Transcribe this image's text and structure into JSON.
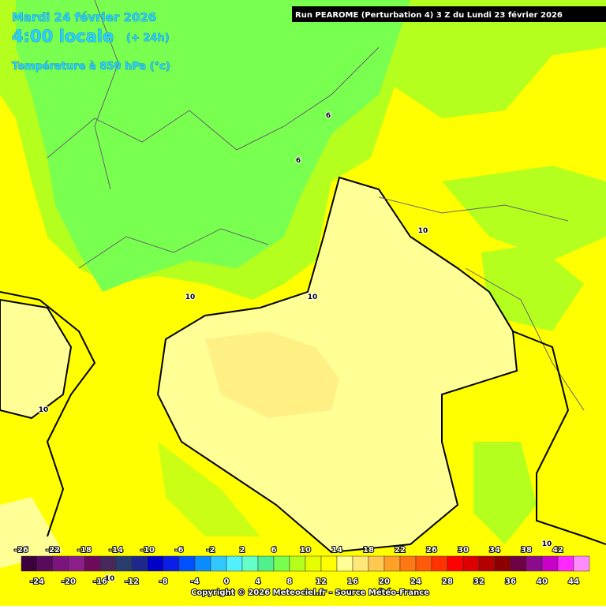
{
  "header": {
    "date": "Mardi 24 février 2026",
    "time": "4:00 locale",
    "lead": "(+ 24h)",
    "parameter": "Température à 850 hPa (°c)",
    "run": "Run PEAROME (Perturbation 4) 3 Z du Lundi 23 février 2026"
  },
  "contour_labels": [
    6,
    6,
    10,
    10,
    10,
    10,
    10,
    10
  ],
  "legend": {
    "values": [
      -26,
      -24,
      -22,
      -20,
      -18,
      -16,
      -14,
      -12,
      -10,
      -8,
      -6,
      -4,
      -2,
      0,
      2,
      4,
      6,
      8,
      10,
      12,
      14,
      16,
      18,
      20,
      22,
      24,
      26,
      28,
      30,
      32,
      34,
      36,
      38,
      40,
      42,
      44
    ],
    "colors": [
      "#3c003c",
      "#5a0a5a",
      "#7d147d",
      "#8c1e8c",
      "#6e0a5a",
      "#46285a",
      "#283c6e",
      "#1e288c",
      "#0000c8",
      "#0a1ee6",
      "#0050ff",
      "#0a8cff",
      "#32c8ff",
      "#50f0ff",
      "#64ffc8",
      "#50f08c",
      "#78ff50",
      "#b4ff1e",
      "#e6ff00",
      "#ffff00",
      "#ffff96",
      "#ffe678",
      "#ffc850",
      "#ffa028",
      "#ff7814",
      "#ff5a0a",
      "#ff3200",
      "#ff0000",
      "#dc0000",
      "#b40000",
      "#8c0000",
      "#6e0046",
      "#8c0a8c",
      "#c800c8",
      "#ff28ff",
      "#ff8cff"
    ]
  },
  "footer": {
    "copyright": "Copyright © 2026 Meteociel.fr - Source Météo-France"
  }
}
